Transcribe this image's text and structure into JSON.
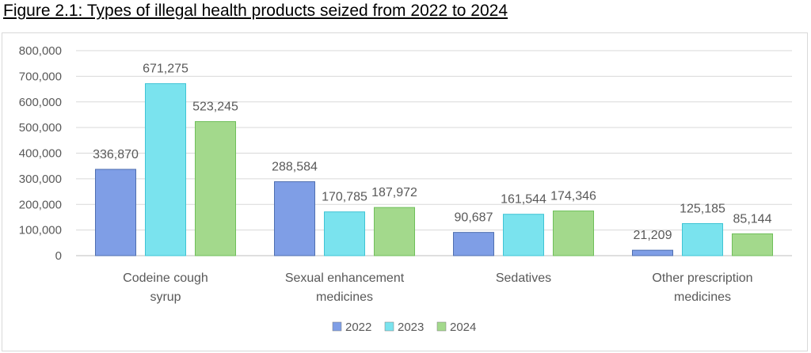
{
  "figure": {
    "title": "Figure 2.1: Types of illegal health products seized from 2022 to 2024"
  },
  "chart_data": {
    "type": "bar",
    "categories": [
      [
        "Codeine cough",
        "syrup"
      ],
      [
        "Sexual enhancement",
        "medicines"
      ],
      [
        "Sedatives"
      ],
      [
        "Other prescription",
        "medicines"
      ]
    ],
    "series": [
      {
        "name": "2022",
        "values": [
          336870,
          288584,
          90687,
          21209
        ],
        "color": "#7f9ee6"
      },
      {
        "name": "2023",
        "values": [
          671275,
          170785,
          161544,
          125185
        ],
        "color": "#7ae3ee"
      },
      {
        "name": "2024",
        "values": [
          523245,
          187972,
          174346,
          85144
        ],
        "color": "#a3d98c"
      }
    ],
    "data_labels": [
      [
        "336,870",
        "288,584",
        "90,687",
        "21,209"
      ],
      [
        "671,275",
        "170,785",
        "161,544",
        "125,185"
      ],
      [
        "523,245",
        "187,972",
        "174,346",
        "85,144"
      ]
    ],
    "ylim": [
      0,
      800000
    ],
    "y_ticks": [
      0,
      100000,
      200000,
      300000,
      400000,
      500000,
      600000,
      700000,
      800000
    ],
    "y_tick_labels": [
      "0",
      "100,000",
      "200,000",
      "300,000",
      "400,000",
      "500,000",
      "600,000",
      "700,000",
      "800,000"
    ],
    "grid": true,
    "legend_position": "bottom",
    "title": "",
    "xlabel": "",
    "ylabel": ""
  }
}
